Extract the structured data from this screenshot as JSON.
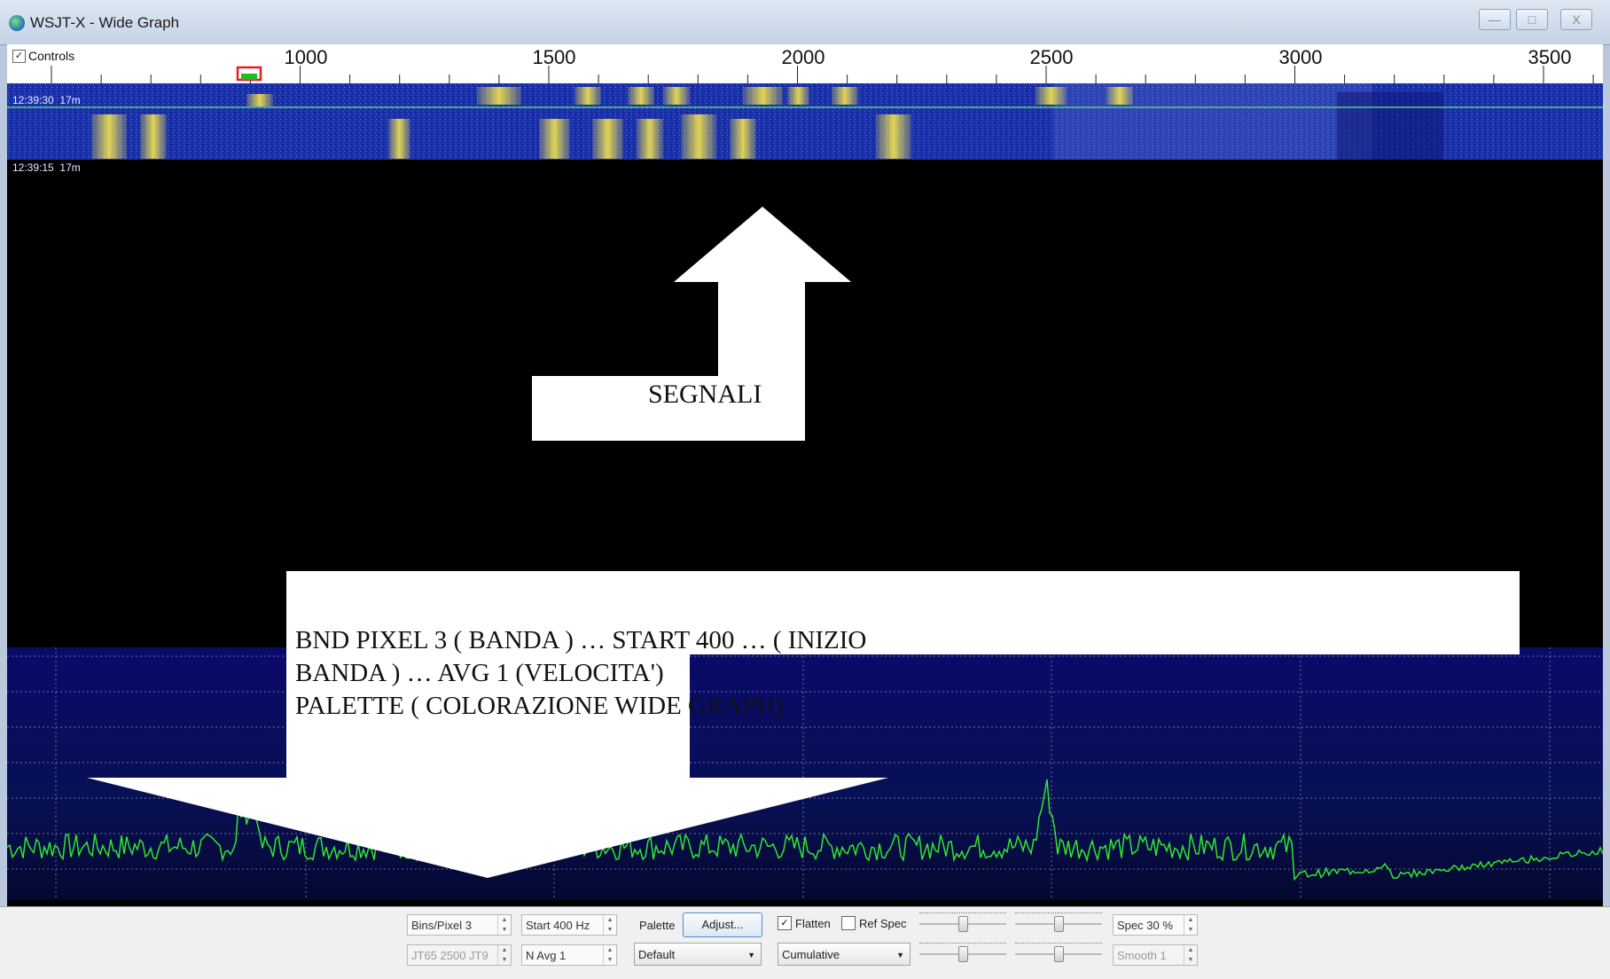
{
  "window": {
    "title": "WSJT-X - Wide Graph",
    "buttons": {
      "minimize": "—",
      "maximize": "□",
      "close": "X"
    }
  },
  "scale": {
    "controls_label": "Controls",
    "controls_checked": true,
    "ticks": [
      "1000",
      "1500",
      "2000",
      "2500",
      "3000",
      "3500"
    ]
  },
  "waterfall": {
    "timestamps": [
      {
        "time": "12:39:30",
        "band": "17m"
      },
      {
        "time": "12:39:15",
        "band": "17m"
      }
    ]
  },
  "annotations": {
    "signals": "SEGNALI",
    "settings_note": [
      "BND PIXEL 3  ( BANDA ) … START 400 …  ( INIZIO",
      "BANDA ) …  AVG 1 (VELOCITA')",
      "PALETTE ( COLORAZIONE WIDE GRAPH)"
    ]
  },
  "toolbar": {
    "bins_per_pixel": "Bins/Pixel  3",
    "start_freq": "Start 400 Hz",
    "jt65_jt9": "JT65  2500  JT9",
    "n_avg": "N Avg  1",
    "palette_label": "Palette",
    "adjust_button": "Adjust...",
    "palette_value": "Default",
    "flatten_label": "Flatten",
    "flatten_checked": true,
    "ref_spec_label": "Ref Spec",
    "ref_spec_checked": false,
    "mode_value": "Cumulative",
    "spec_value": "Spec 30 %",
    "smooth_value": "Smooth  1"
  },
  "colors": {
    "waterfall_bg": "#1a2fa8",
    "signal": "#f0e040",
    "spectrum_line": "#2ee82e",
    "spectrum_bg": "#0a0a6a"
  }
}
